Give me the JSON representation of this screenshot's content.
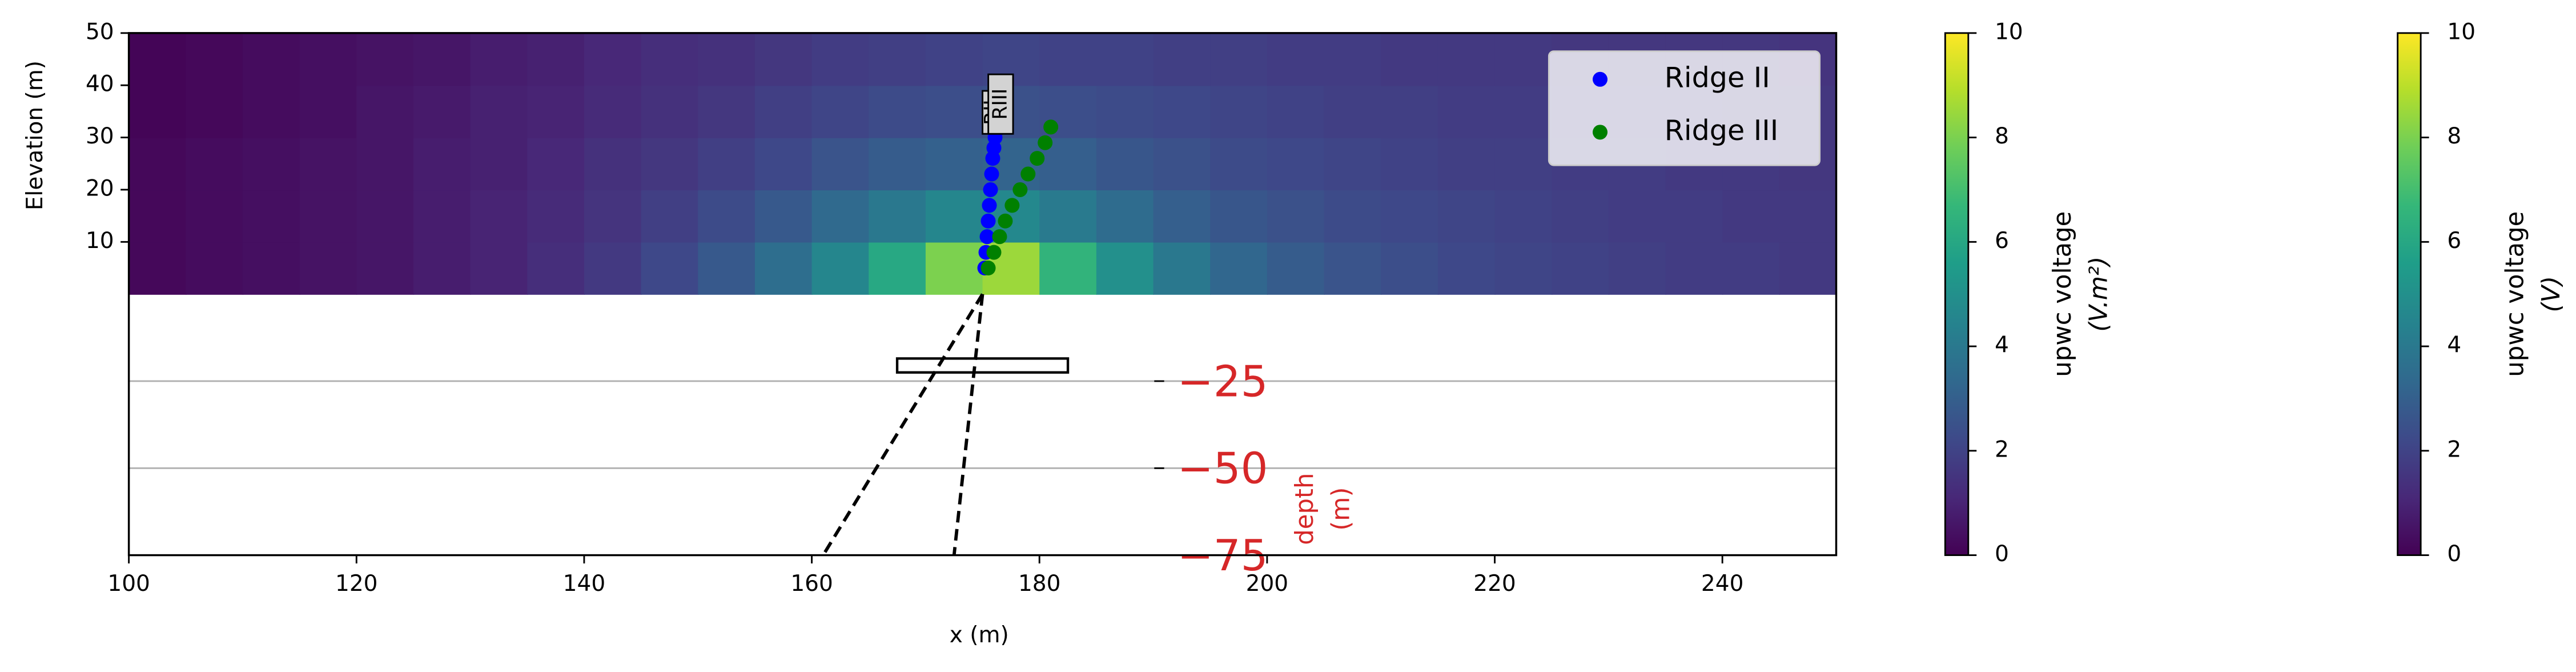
{
  "chart_data": {
    "type": "heatmap",
    "xlabel": "x (m)",
    "ylabel": "Elevation (m)",
    "xlim": [
      100,
      250
    ],
    "xticks": [
      100,
      120,
      140,
      160,
      180,
      200,
      220,
      240
    ],
    "ylim": [
      0,
      50
    ],
    "yticks": [
      10,
      20,
      30,
      40,
      50
    ],
    "colormap": "viridis",
    "heatmap": {
      "x_edges": [
        100,
        105,
        110,
        115,
        120,
        125,
        130,
        135,
        140,
        145,
        150,
        155,
        160,
        165,
        170,
        175,
        180,
        185,
        190,
        195,
        200,
        205,
        210,
        215,
        220,
        225,
        230,
        235,
        240,
        245,
        250
      ],
      "y_edges": [
        0,
        10,
        20,
        30,
        40,
        50
      ],
      "values": [
        [
          0.2,
          0.3,
          0.4,
          0.5,
          0.6,
          0.8,
          1.0,
          1.3,
          1.7,
          2.2,
          2.8,
          3.6,
          4.6,
          6.0,
          8.0,
          8.5,
          6.5,
          5.0,
          4.0,
          3.3,
          2.9,
          2.6,
          2.4,
          2.2,
          2.1,
          2.0,
          1.9,
          1.8,
          1.8,
          1.7
        ],
        [
          0.2,
          0.3,
          0.4,
          0.5,
          0.6,
          0.8,
          1.0,
          1.2,
          1.5,
          1.9,
          2.3,
          2.8,
          3.4,
          4.0,
          4.6,
          4.7,
          4.1,
          3.5,
          3.0,
          2.7,
          2.5,
          2.3,
          2.2,
          2.1,
          2.0,
          1.9,
          1.8,
          1.8,
          1.7,
          1.7
        ],
        [
          0.2,
          0.3,
          0.4,
          0.5,
          0.6,
          0.8,
          0.9,
          1.1,
          1.4,
          1.6,
          1.9,
          2.2,
          2.6,
          2.9,
          3.1,
          3.2,
          3.0,
          2.7,
          2.5,
          2.3,
          2.2,
          2.1,
          2.0,
          1.9,
          1.9,
          1.8,
          1.8,
          1.7,
          1.7,
          1.6
        ],
        [
          0.1,
          0.2,
          0.3,
          0.4,
          0.6,
          0.7,
          0.9,
          1.0,
          1.2,
          1.4,
          1.6,
          1.9,
          2.1,
          2.3,
          2.4,
          2.5,
          2.4,
          2.3,
          2.2,
          2.1,
          2.0,
          1.9,
          1.9,
          1.8,
          1.8,
          1.7,
          1.7,
          1.7,
          1.6,
          1.6
        ],
        [
          0.1,
          0.2,
          0.3,
          0.4,
          0.5,
          0.6,
          0.8,
          0.9,
          1.1,
          1.3,
          1.4,
          1.6,
          1.8,
          1.9,
          2.0,
          2.1,
          2.0,
          2.0,
          1.9,
          1.9,
          1.8,
          1.8,
          1.7,
          1.7,
          1.7,
          1.6,
          1.6,
          1.6,
          1.6,
          1.5
        ]
      ]
    },
    "series": [
      {
        "name": "Ridge II",
        "color": "#0000ff",
        "x": [
          175.2,
          175.3,
          175.4,
          175.5,
          175.6,
          175.7,
          175.8,
          175.9,
          176.0,
          176.1
        ],
        "y": [
          5,
          8,
          11,
          14,
          17,
          20,
          23,
          26,
          28,
          30
        ]
      },
      {
        "name": "Ridge III",
        "color": "#008000",
        "x": [
          175.5,
          176.0,
          176.5,
          177.0,
          177.6,
          178.3,
          179.0,
          179.8,
          180.5,
          181.0
        ],
        "y": [
          5,
          8,
          11,
          14,
          17,
          20,
          23,
          26,
          29,
          32
        ]
      }
    ],
    "annotations": [
      "RII",
      "RIII"
    ],
    "depth_label": [
      "depth",
      "(m)"
    ],
    "depth_lim": [
      0,
      -75
    ],
    "depth_ticks": [
      {
        "value": -25,
        "label": "−25"
      },
      {
        "value": -50,
        "label": "−50"
      },
      {
        "value": -75,
        "label": "−75"
      }
    ],
    "depth_lines": [
      {
        "x": [
          175,
          161
        ],
        "depth": [
          0,
          -75
        ]
      },
      {
        "x": [
          175,
          172.5
        ],
        "depth": [
          0,
          -75
        ]
      }
    ],
    "depth_box": {
      "x": [
        167.5,
        182.5
      ],
      "depth": [
        -18.5,
        -22.5
      ]
    },
    "colorbars": [
      {
        "label": [
          "upwc voltage",
          "(V.m²)"
        ],
        "lim": [
          0,
          10
        ],
        "ticks": [
          0,
          2,
          4,
          6,
          8,
          10
        ]
      },
      {
        "label": [
          "upwc voltage",
          "(V)"
        ],
        "lim": [
          0,
          10
        ],
        "ticks": [
          0,
          2,
          4,
          6,
          8,
          10
        ]
      }
    ]
  }
}
